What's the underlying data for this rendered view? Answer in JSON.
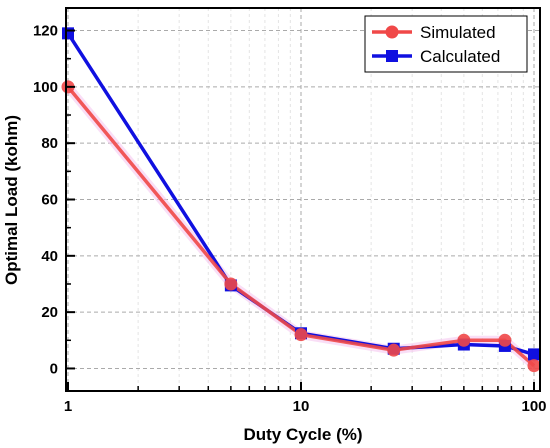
{
  "chart_data": {
    "type": "line",
    "xlabel": "Duty Cycle (%)",
    "ylabel": "Optimal Load (kohm)",
    "xscale": "log",
    "xlim": [
      1,
      100
    ],
    "ylim": [
      -8,
      128
    ],
    "xticks": [
      1,
      10,
      100
    ],
    "xtick_labels": [
      "1",
      "10",
      "100"
    ],
    "yticks": [
      0,
      20,
      40,
      60,
      80,
      100,
      120
    ],
    "ytick_labels": [
      "0",
      "20",
      "40",
      "60",
      "80",
      "100",
      "120"
    ],
    "grid": true,
    "legend_position": "top-right",
    "series": [
      {
        "name": "Simulated",
        "color": "#f04848",
        "marker": "circle",
        "x": [
          1,
          5,
          10,
          25,
          50,
          75,
          100
        ],
        "y": [
          100,
          30,
          12,
          6.5,
          10,
          10,
          1
        ]
      },
      {
        "name": "Calculated",
        "color": "#1010e0",
        "marker": "square",
        "x": [
          1,
          5,
          10,
          25,
          50,
          75,
          100
        ],
        "y": [
          119,
          29.5,
          12.5,
          7,
          8.5,
          8,
          5
        ]
      }
    ]
  }
}
